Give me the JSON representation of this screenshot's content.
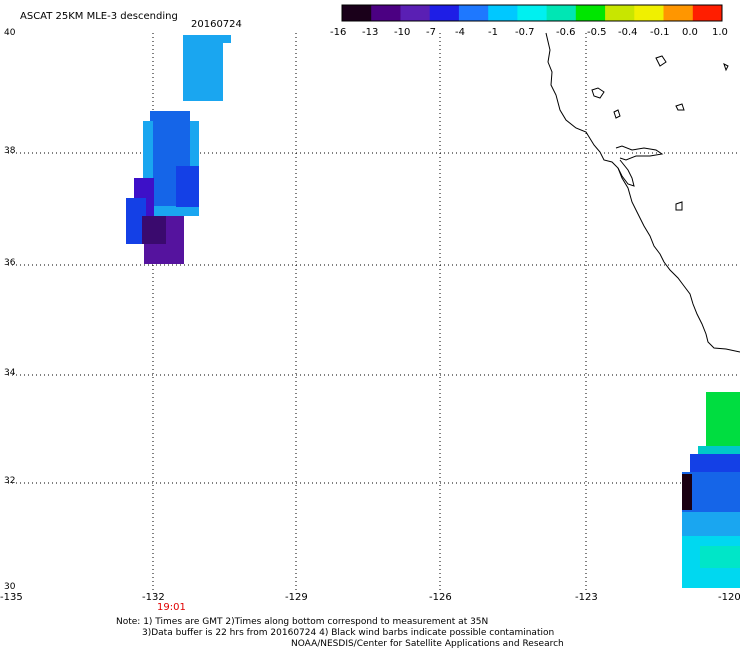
{
  "header": {
    "title": "ASCAT 25KM MLE-3 descending",
    "date": "20160724"
  },
  "colorbar": {
    "ticks": [
      "-16",
      "-13",
      "-10",
      "-7",
      "-4",
      "-1",
      "-0.7",
      "-0.6",
      "-0.5",
      "-0.4",
      "-0.1",
      "0.0",
      "1.0"
    ],
    "colors": [
      "#1a001a",
      "#4b0082",
      "#5a1fb4",
      "#1e1ee6",
      "#1e78ff",
      "#00c8ff",
      "#00f0f0",
      "#00e6b4",
      "#00e600",
      "#c8e600",
      "#f0f000",
      "#ff9600",
      "#ff1e00"
    ]
  },
  "axes": {
    "y_ticks": [
      "40",
      "38",
      "36",
      "34",
      "32",
      "30"
    ],
    "x_ticks": [
      "-135",
      "-132",
      "-129",
      "-126",
      "-123",
      "-120"
    ]
  },
  "time_marker": "19:01",
  "notes": {
    "line1": "Note: 1) Times are GMT 2)Times along bottom correspond to measurement at 35N",
    "line2": "3)Data buffer is 22 hrs from 20160724 4) Black wind barbs indicate possible contamination",
    "line3": "NOAA/NESDIS/Center for Satellite Applications and Research"
  },
  "swath_colors": {
    "light_blue": "#1aa6f0",
    "medium_blue": "#1565e8",
    "blue": "#1440e6",
    "indigo": "#3d10c8",
    "purple": "#55139e",
    "deep_purple": "#3a0a6e",
    "cyan": "#00d8f0",
    "aqua": "#00e6c8",
    "green": "#00dd40",
    "black_purple": "#1a0012"
  }
}
